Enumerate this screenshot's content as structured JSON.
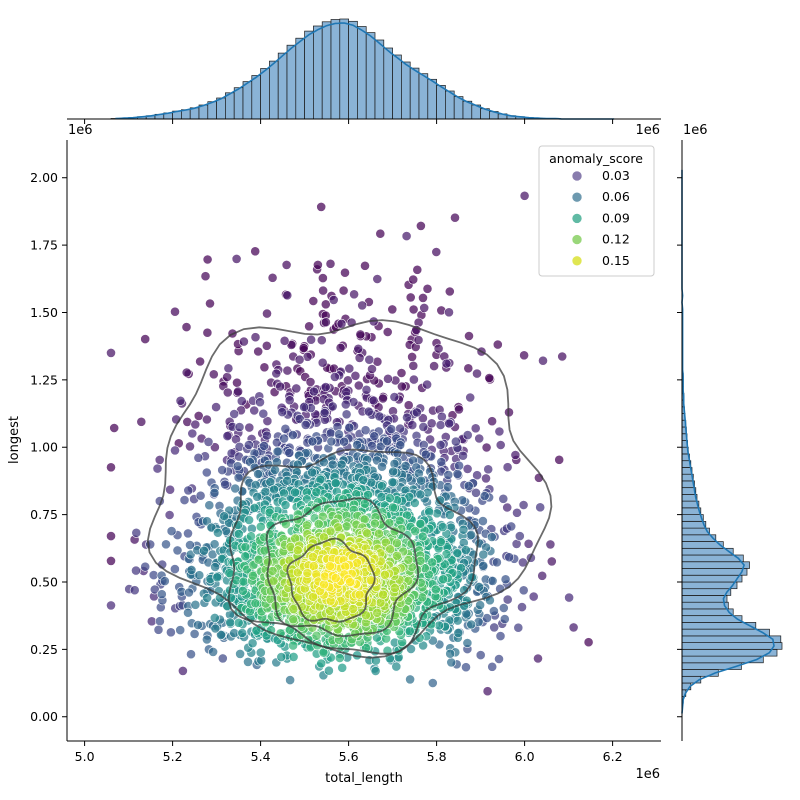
{
  "chart_data": {
    "type": "scatter",
    "title": "",
    "xlabel": "total_length",
    "ylabel": "longest",
    "x_offset_text": "1e6",
    "y_offset_text": "1e6",
    "top_marginal_offset_text": "1e6",
    "top_marginal_offset_text_right": "1e6",
    "right_marginal_offset_text": "1e6",
    "xlim": [
      4.96,
      6.31
    ],
    "ylim": [
      -0.09,
      2.14
    ],
    "xticks": [
      5.0,
      5.2,
      5.4,
      5.6,
      5.8,
      6.0,
      6.2
    ],
    "xtick_labels": [
      "5.0",
      "5.2",
      "5.4",
      "5.6",
      "5.8",
      "6.0",
      "6.2"
    ],
    "yticks": [
      0.0,
      0.25,
      0.5,
      0.75,
      1.0,
      1.25,
      1.5,
      1.75,
      2.0
    ],
    "ytick_labels": [
      "0.00",
      "0.25",
      "0.50",
      "0.75",
      "1.00",
      "1.25",
      "1.50",
      "1.75",
      "2.00"
    ],
    "grid": false,
    "legend": {
      "title": "anomaly_score",
      "placement": "top-right",
      "entries": [
        {
          "label": "0.03",
          "color": "#7b6ea4"
        },
        {
          "label": "0.06",
          "color": "#5d8ea6"
        },
        {
          "label": "0.09",
          "color": "#4fb39a"
        },
        {
          "label": "0.12",
          "color": "#8fd36b"
        },
        {
          "label": "0.15",
          "color": "#dde33f"
        }
      ]
    },
    "colormap": "viridis",
    "hue_range": [
      0.0,
      0.17
    ],
    "marginal_color": "#8ab3d6",
    "kde_color": "#1f77b4",
    "contour_color": "#3a3a3a",
    "top_hist": {
      "bin_start": 5.06,
      "bin_width": 0.02,
      "counts": [
        1,
        2,
        3,
        5,
        7,
        10,
        13,
        17,
        20,
        24,
        30,
        37,
        45,
        56,
        67,
        80,
        93,
        108,
        124,
        141,
        158,
        173,
        188,
        199,
        208,
        213,
        214,
        209,
        198,
        185,
        169,
        152,
        137,
        122,
        109,
        97,
        85,
        72,
        60,
        48,
        38,
        30,
        22,
        16,
        11,
        7,
        5,
        3,
        2,
        1,
        1,
        0,
        0,
        0,
        0,
        0,
        0
      ]
    },
    "right_hist": {
      "bin_start": 0.0,
      "bin_width": 0.025,
      "counts": [
        0,
        1,
        2,
        6,
        14,
        30,
        58,
        95,
        130,
        152,
        160,
        158,
        140,
        118,
        96,
        82,
        74,
        72,
        78,
        88,
        96,
        104,
        108,
        98,
        82,
        66,
        54,
        44,
        38,
        34,
        30,
        27,
        24,
        22,
        20,
        18,
        16,
        14,
        12,
        10,
        9,
        8,
        7,
        6,
        5,
        4,
        3,
        3,
        2,
        2,
        2,
        1,
        1,
        1,
        1,
        1,
        1,
        1,
        1,
        1,
        1,
        0,
        1,
        0,
        0,
        0,
        0,
        0,
        0,
        0,
        0,
        0,
        0,
        0,
        0,
        0,
        0,
        0,
        0,
        0,
        0
      ]
    },
    "scatter_generation": {
      "count": 3400,
      "x_center": 5.59,
      "x_spread": 0.17,
      "y_center": 0.55,
      "y_spread": 0.18
    }
  }
}
